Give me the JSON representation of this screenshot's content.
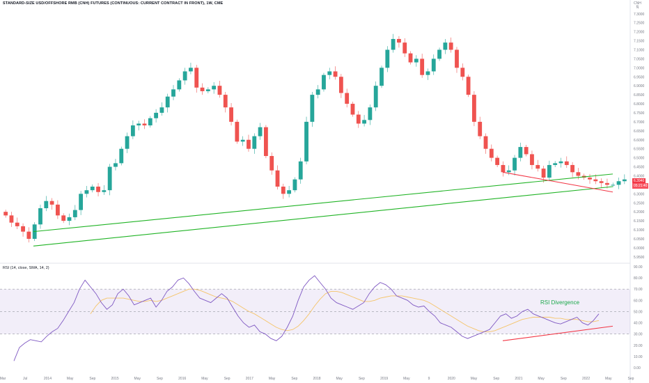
{
  "header": {
    "title": "STANDARD-SIZE USD/OFFSHORE RMB (CNH) FUTURES (CONTINUOUS: CURRENT CONTRACT IN FRONT), 1W, CME",
    "currency": "CNH",
    "unit_label": "Ñ"
  },
  "price_badge": {
    "price": "6.3940",
    "countdown": "05:21:40"
  },
  "rsi": {
    "title": "RSI (14, close, SMA, 14, 2)",
    "annotation": "RSI Divergence"
  },
  "colors": {
    "up": "#26a69a",
    "down": "#ef5350",
    "trendline_green": "#1fb324",
    "trendline_red": "#f23645",
    "rsi_line": "#7e57c2",
    "rsi_ma": "#f5c469",
    "rsi_band": "#7e57c2"
  },
  "chart_data": [
    {
      "type": "candlestick",
      "x_ticks": [
        "Mar",
        "Jul",
        "2014",
        "May",
        "Sep",
        "2015",
        "May",
        "Sep",
        "2016",
        "May",
        "Sep",
        "2017",
        "May",
        "Sep",
        "2018",
        "May",
        "Sep",
        "2019",
        "May",
        "9",
        "2020",
        "May",
        "Sep",
        "2021",
        "May",
        "Sep",
        "2022",
        "May",
        "Sep"
      ],
      "y_ticks": [
        "7.3000",
        "7.2500",
        "7.2000",
        "7.1500",
        "7.1000",
        "7.0500",
        "7.0000",
        "6.9500",
        "6.9000",
        "6.8500",
        "6.8000",
        "6.7500",
        "6.7000",
        "6.6500",
        "6.6000",
        "6.5500",
        "6.5000",
        "6.4500",
        "6.4000",
        "6.3500",
        "6.3000",
        "6.2500",
        "6.2000",
        "6.1500",
        "6.1000",
        "6.0500",
        "6.0000",
        "5.9500"
      ],
      "ylim": [
        5.93,
        7.33
      ],
      "series": [
        {
          "values": [
            6.18,
            6.14,
            6.12,
            6.09,
            6.05,
            6.13,
            6.22,
            6.26,
            6.24,
            6.18,
            6.15,
            6.17,
            6.21,
            6.3,
            6.32,
            6.34,
            6.31,
            6.32,
            6.45,
            6.47,
            6.55,
            6.62,
            6.68,
            6.69,
            6.68,
            6.72,
            6.75,
            6.78,
            6.84,
            6.88,
            6.93,
            6.98,
            7.0,
            6.89,
            6.87,
            6.88,
            6.9,
            6.85,
            6.78,
            6.7,
            6.59,
            6.6,
            6.55,
            6.62,
            6.67,
            6.51,
            6.43,
            6.34,
            6.3,
            6.32,
            6.38,
            6.48,
            6.7,
            6.85,
            6.88,
            6.96,
            6.98,
            6.95,
            6.86,
            6.8,
            6.74,
            6.69,
            6.71,
            6.78,
            6.9,
            7.0,
            7.1,
            7.16,
            7.14,
            7.08,
            7.03,
            7.05,
            6.96,
            6.98,
            7.05,
            7.1,
            7.14,
            7.1,
            7.0,
            6.95,
            6.85,
            6.7,
            6.62,
            6.55,
            6.5,
            6.46,
            6.42,
            6.43,
            6.5,
            6.56,
            6.52,
            6.46,
            6.44,
            6.39,
            6.46,
            6.47,
            6.48,
            6.46,
            6.42,
            6.4,
            6.39,
            6.38,
            6.37,
            6.36,
            6.35,
            6.35,
            6.37,
            6.38
          ]
        }
      ],
      "trendlines": [
        {
          "color": "green",
          "from": {
            "x": "2013-Nov",
            "y": 6.09
          },
          "to": {
            "x": "2022-Jun",
            "y": 6.41
          }
        },
        {
          "color": "green",
          "from": {
            "x": "2013-Nov",
            "y": 6.01
          },
          "to": {
            "x": "2022-Jun",
            "y": 6.34
          }
        },
        {
          "color": "red",
          "from": {
            "x": "2021-Jan",
            "y": 6.42
          },
          "to": {
            "x": "2022-Jun",
            "y": 6.31
          }
        }
      ]
    },
    {
      "type": "line",
      "title": "RSI (14, close, SMA, 14, 2)",
      "y_ticks": [
        "90.00",
        "80.00",
        "70.00",
        "60.00",
        "50.00",
        "40.00",
        "30.00",
        "20.00",
        "10.00",
        "0.00"
      ],
      "ylim": [
        0,
        90
      ],
      "band": [
        30,
        70
      ],
      "series": [
        {
          "name": "RSI",
          "values": [
            6,
            18,
            22,
            25,
            24,
            23,
            28,
            32,
            35,
            42,
            50,
            58,
            70,
            78,
            72,
            66,
            58,
            52,
            56,
            66,
            70,
            64,
            56,
            58,
            60,
            62,
            54,
            60,
            68,
            72,
            78,
            80,
            75,
            68,
            62,
            60,
            58,
            62,
            66,
            62,
            54,
            46,
            40,
            36,
            38,
            32,
            30,
            26,
            24,
            28,
            36,
            46,
            60,
            72,
            78,
            82,
            76,
            70,
            62,
            58,
            56,
            54,
            52,
            55,
            58,
            66,
            72,
            76,
            74,
            70,
            64,
            62,
            60,
            56,
            54,
            55,
            50,
            46,
            40,
            38,
            36,
            32,
            28,
            26,
            28,
            30,
            32,
            34,
            40,
            46,
            48,
            44,
            46,
            50,
            52,
            48,
            46,
            44,
            42,
            40,
            39,
            41,
            43,
            45,
            40,
            38,
            42,
            48
          ]
        },
        {
          "name": "RSI-based MA",
          "values": [
            null,
            null,
            null,
            null,
            null,
            null,
            null,
            null,
            null,
            null,
            null,
            null,
            null,
            null,
            48,
            55,
            60,
            62,
            62,
            62,
            62,
            61,
            60,
            59,
            59,
            60,
            59,
            60,
            62,
            64,
            66,
            68,
            70,
            70,
            69,
            67,
            65,
            63,
            62,
            61,
            59,
            56,
            53,
            50,
            48,
            45,
            42,
            39,
            36,
            34,
            33,
            34,
            37,
            42,
            48,
            55,
            61,
            66,
            68,
            68,
            67,
            65,
            63,
            61,
            59,
            59,
            60,
            62,
            63,
            64,
            64,
            64,
            63,
            62,
            61,
            60,
            58,
            55,
            52,
            49,
            46,
            43,
            40,
            37,
            35,
            33,
            32,
            32,
            33,
            35,
            37,
            39,
            41,
            43,
            44,
            45,
            45,
            45,
            45,
            44,
            44,
            43,
            43,
            43,
            42,
            41,
            41,
            42
          ]
        }
      ],
      "trendlines": [
        {
          "color": "red",
          "from": {
            "x": "2021-Jan",
            "y": 24
          },
          "to": {
            "x": "2022-Jun",
            "y": 37
          }
        }
      ]
    }
  ]
}
